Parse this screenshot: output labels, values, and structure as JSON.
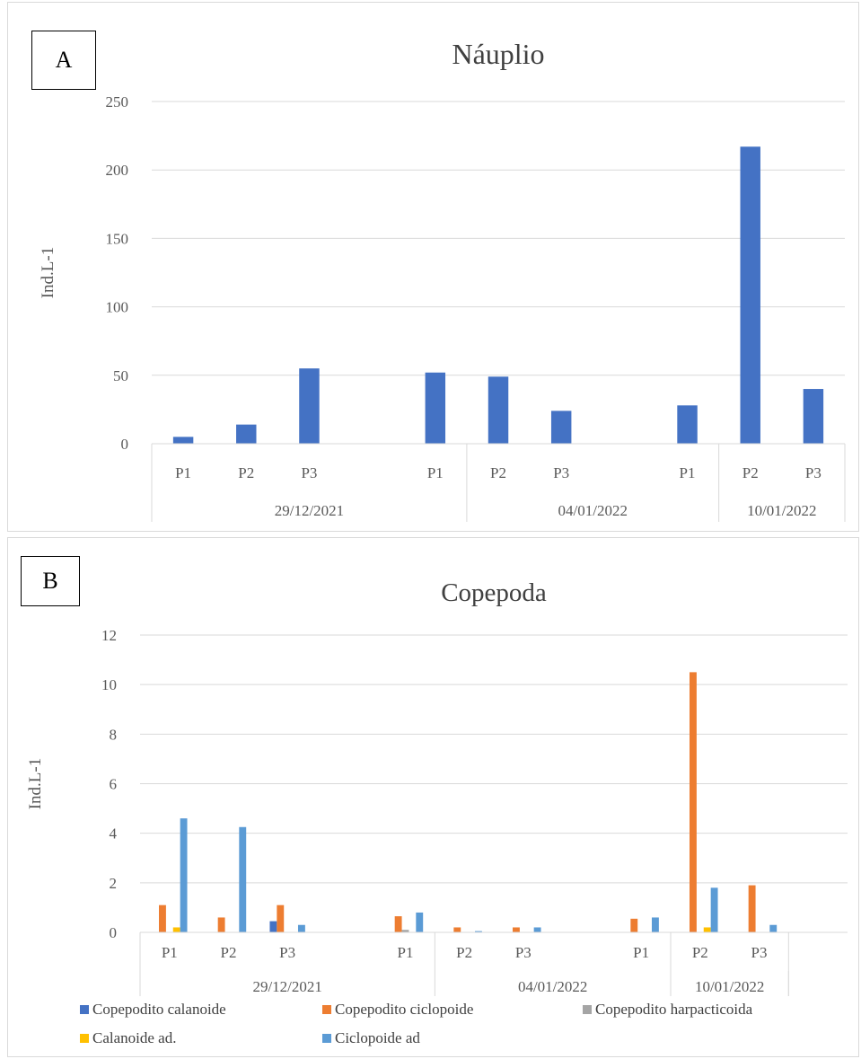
{
  "chart_data": [
    {
      "type": "bar",
      "panel_label": "A",
      "title": "Náuplio",
      "ylabel": "Ind.L-1",
      "xlabel": "",
      "ylim": [
        0,
        250
      ],
      "yticks": [
        0,
        50,
        100,
        150,
        200,
        250
      ],
      "grid": true,
      "colors": [
        "#4472C4"
      ],
      "categories": [
        "P1",
        "P2",
        "P3",
        "",
        "P1",
        "P2",
        "P3",
        "",
        "P1",
        "P2",
        "P3"
      ],
      "groups": [
        {
          "label": "29/12/2021",
          "start": 0,
          "end": 4
        },
        {
          "label": "04/01/2022",
          "start": 5,
          "end": 8
        },
        {
          "label": "10/01/2022",
          "start": 9,
          "end": 10
        }
      ],
      "series": [
        {
          "values": [
            5,
            14,
            55,
            null,
            52,
            49,
            24,
            null,
            28,
            217,
            40
          ]
        }
      ]
    },
    {
      "type": "bar",
      "panel_label": "B",
      "title": "Copepoda",
      "ylabel": "Ind.L-1",
      "xlabel": "",
      "ylim": [
        0,
        12
      ],
      "yticks": [
        0,
        2,
        4,
        6,
        8,
        10,
        12
      ],
      "grid": true,
      "legend_position": "bottom",
      "categories": [
        "P1",
        "P2",
        "P3",
        "",
        "P1",
        "P2",
        "P3",
        "",
        "P1",
        "P2",
        "P3",
        ""
      ],
      "groups": [
        {
          "label": "29/12/2021",
          "start": 0,
          "end": 4
        },
        {
          "label": "04/01/2022",
          "start": 5,
          "end": 8
        },
        {
          "label": "10/01/2022",
          "start": 9,
          "end": 10
        }
      ],
      "series": [
        {
          "name": "Copepodito calanoide",
          "color": "#4472C4",
          "values": [
            0,
            0,
            0.45,
            0,
            0,
            0,
            0,
            0,
            0,
            0,
            0,
            0
          ]
        },
        {
          "name": "Copepodito ciclopoide",
          "color": "#ED7D31",
          "values": [
            1.1,
            0.6,
            1.1,
            0,
            0.65,
            0.2,
            0.2,
            0,
            0.55,
            10.5,
            1.9,
            0
          ]
        },
        {
          "name": "Copepodito harpacticoida",
          "color": "#A5A5A5",
          "values": [
            0,
            0,
            0,
            0,
            0.1,
            0,
            0,
            0,
            0,
            0,
            0,
            0
          ]
        },
        {
          "name": "Calanoide ad.",
          "color": "#FFC000",
          "values": [
            0.2,
            0,
            0,
            0,
            0,
            0,
            0,
            0,
            0,
            0.2,
            0,
            0
          ]
        },
        {
          "name": "Ciclopoide ad",
          "color": "#5B9BD5",
          "values": [
            4.6,
            4.25,
            0.3,
            0,
            0.8,
            0.05,
            0.2,
            0,
            0.6,
            1.8,
            0.3,
            0
          ]
        }
      ]
    }
  ]
}
